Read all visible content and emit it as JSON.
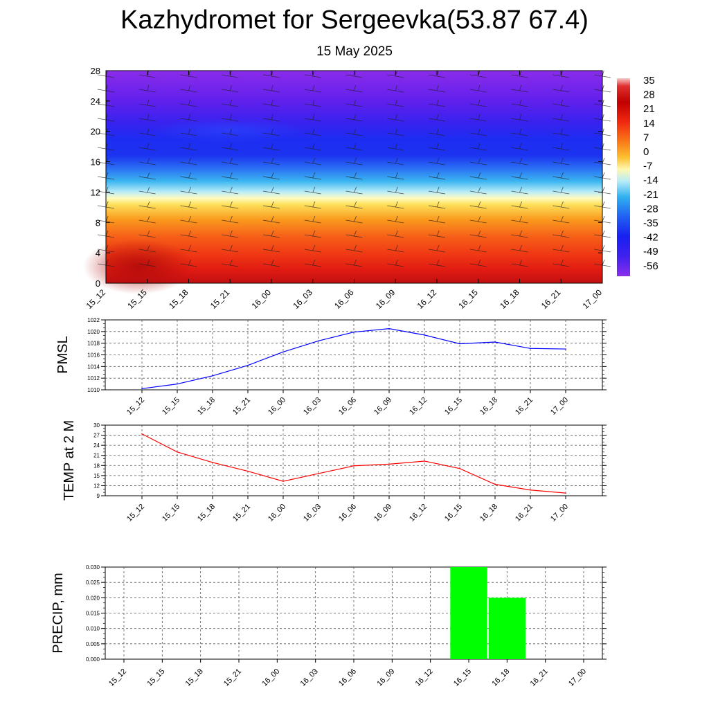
{
  "title": "Kazhydromet for Sergeevka(53.87 67.4)",
  "subtitle": "15 May 2025",
  "colors": {
    "pressure_line": "#0000ff",
    "temperature_line": "#ff0000",
    "precip_bar": "#00ff00",
    "grid": "#000000"
  },
  "chart_data": [
    {
      "type": "heatmap",
      "name": "temperature-cross-section",
      "x_categories": [
        "15_12",
        "15_15",
        "15_18",
        "15_21",
        "16_00",
        "16_03",
        "16_06",
        "16_09",
        "16_12",
        "16_15",
        "16_18",
        "16_21",
        "17_00"
      ],
      "ylim": [
        0,
        28
      ],
      "y_ticks": [
        "0",
        "4",
        "8",
        "12",
        "16",
        "20",
        "24",
        "28"
      ],
      "colorbar_labels": [
        "35",
        "28",
        "21",
        "14",
        "7",
        "0",
        "-7",
        "-14",
        "-21",
        "-28",
        "-35",
        "-42",
        "-49",
        "-56"
      ],
      "colorbar_range": [
        -60,
        38
      ],
      "wind_barbs": true
    },
    {
      "type": "line",
      "ylabel": "PMSL",
      "categories": [
        "15_12",
        "15_15",
        "15_18",
        "15_21",
        "16_00",
        "16_03",
        "16_06",
        "16_09",
        "16_12",
        "16_15",
        "16_18",
        "16_21",
        "17_00"
      ],
      "values": [
        1010.2,
        1011.0,
        1012.4,
        1014.2,
        1016.5,
        1018.4,
        1019.9,
        1020.5,
        1019.4,
        1017.9,
        1018.2,
        1017.1,
        1017.0
      ],
      "ylim": [
        1010,
        1022
      ],
      "y_ticks": [
        "1010",
        "1012",
        "1014",
        "1016",
        "1018",
        "1020",
        "1022"
      ],
      "grid": true
    },
    {
      "type": "line",
      "ylabel": "TEMP at 2 M",
      "categories": [
        "15_12",
        "15_15",
        "15_18",
        "15_21",
        "16_00",
        "16_03",
        "16_06",
        "16_09",
        "16_12",
        "16_15",
        "16_18",
        "16_21",
        "17_00"
      ],
      "values": [
        27.4,
        22.0,
        18.9,
        16.3,
        13.3,
        15.6,
        17.9,
        18.4,
        19.3,
        17.1,
        12.4,
        10.7,
        9.8
      ],
      "ylim": [
        9,
        30
      ],
      "y_ticks": [
        "9",
        "12",
        "15",
        "18",
        "21",
        "24",
        "27",
        "30"
      ],
      "grid": true
    },
    {
      "type": "bar",
      "ylabel": "PRECIP, mm",
      "categories": [
        "15_12",
        "15_15",
        "15_18",
        "15_21",
        "16_00",
        "16_03",
        "16_06",
        "16_09",
        "16_12",
        "16_15",
        "16_18",
        "16_21",
        "17_00"
      ],
      "values": [
        0,
        0,
        0,
        0,
        0,
        0,
        0,
        0,
        0,
        0.03,
        0.02,
        0,
        0
      ],
      "ylim": [
        0,
        0.03
      ],
      "y_ticks": [
        "0.000",
        "0.005",
        "0.010",
        "0.015",
        "0.020",
        "0.025",
        "0.030"
      ],
      "grid": true
    }
  ]
}
